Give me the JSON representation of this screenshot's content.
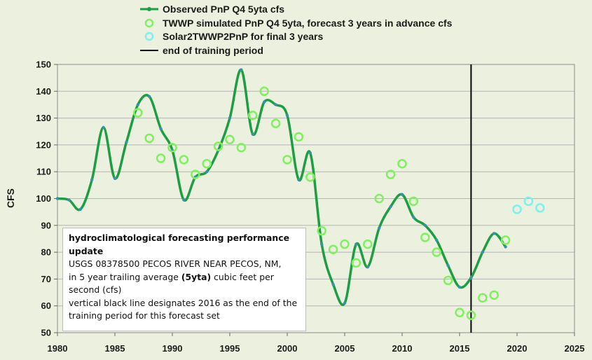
{
  "chart_data": {
    "type": "line",
    "ylabel": "CFS",
    "xlim": [
      1980,
      2025
    ],
    "ylim": [
      50,
      150
    ],
    "x_ticks": [
      "1980",
      "1985",
      "1990",
      "1995",
      "2000",
      "2005",
      "2010",
      "2015",
      "2020",
      "2025"
    ],
    "y_ticks": [
      "50",
      "60",
      "70",
      "80",
      "90",
      "100",
      "110",
      "120",
      "130",
      "140",
      "150"
    ],
    "series": [
      {
        "name": "Observed PnP Q4 5yta cfs",
        "color": "#1e9e44",
        "style": "smooth-line",
        "points": [
          [
            1980,
            100
          ],
          [
            1981,
            99.5
          ],
          [
            1982,
            96
          ],
          [
            1983,
            107
          ],
          [
            1984,
            126.5
          ],
          [
            1985,
            107.5
          ],
          [
            1986,
            121
          ],
          [
            1987,
            135
          ],
          [
            1988,
            138
          ],
          [
            1989,
            126
          ],
          [
            1990,
            118
          ],
          [
            1991,
            99.5
          ],
          [
            1992,
            108
          ],
          [
            1993,
            110
          ],
          [
            1994,
            118
          ],
          [
            1995,
            130
          ],
          [
            1996,
            148
          ],
          [
            1997,
            124
          ],
          [
            1998,
            136
          ],
          [
            1999,
            135
          ],
          [
            2000,
            131
          ],
          [
            2001,
            107
          ],
          [
            2002,
            117
          ],
          [
            2003,
            83
          ],
          [
            2004,
            68
          ],
          [
            2005,
            61
          ],
          [
            2006,
            83
          ],
          [
            2007,
            74.5
          ],
          [
            2008,
            89
          ],
          [
            2009,
            97
          ],
          [
            2010,
            101.5
          ],
          [
            2011,
            93
          ],
          [
            2012,
            90
          ],
          [
            2013,
            84.5
          ],
          [
            2014,
            75
          ],
          [
            2015,
            67
          ],
          [
            2016,
            70.5
          ],
          [
            2017,
            80
          ],
          [
            2018,
            87
          ],
          [
            2019,
            82
          ]
        ]
      },
      {
        "name": "TWWP simulated PnP Q4 5yta, forecast 3 years in advance cfs",
        "color": "#80f060",
        "style": "circles",
        "points": [
          [
            1987,
            132
          ],
          [
            1988,
            122.5
          ],
          [
            1989,
            115
          ],
          [
            1990,
            119
          ],
          [
            1991,
            114.5
          ],
          [
            1992,
            109
          ],
          [
            1993,
            113
          ],
          [
            1994,
            119.5
          ],
          [
            1995,
            122
          ],
          [
            1996,
            119
          ],
          [
            1997,
            131
          ],
          [
            1998,
            140
          ],
          [
            1999,
            128
          ],
          [
            2000,
            114.5
          ],
          [
            2001,
            123
          ],
          [
            2002,
            108
          ],
          [
            2003,
            88
          ],
          [
            2004,
            81
          ],
          [
            2005,
            83
          ],
          [
            2006,
            76
          ],
          [
            2007,
            83
          ],
          [
            2008,
            100
          ],
          [
            2009,
            109
          ],
          [
            2010,
            113
          ],
          [
            2011,
            99
          ],
          [
            2012,
            85.5
          ],
          [
            2013,
            80
          ],
          [
            2014,
            69.5
          ],
          [
            2015,
            57.5
          ],
          [
            2016,
            56.5
          ],
          [
            2017,
            63
          ],
          [
            2018,
            64
          ],
          [
            2019,
            84.5
          ]
        ]
      },
      {
        "name": "Solar2TWWP2PnP for final 3 years",
        "color": "#7ff0ee",
        "style": "circles",
        "points": [
          [
            2020,
            96
          ],
          [
            2021,
            99
          ],
          [
            2022,
            96.5
          ]
        ]
      },
      {
        "name": "end of training period",
        "color": "#000000",
        "style": "vline",
        "x": 2016
      }
    ]
  },
  "annotation": {
    "title": "hydroclimatological forecasting performance update",
    "line1": "USGS 08378500 PECOS RIVER NEAR PECOS, NM,",
    "line2_pre": " in 5 year trailing average ",
    "line2_bold": "(5yta)",
    "line2_post": " cubic feet per second (cfs)",
    "line3": "vertical black line designates 2016 as the end of the training period for this forecast set"
  }
}
